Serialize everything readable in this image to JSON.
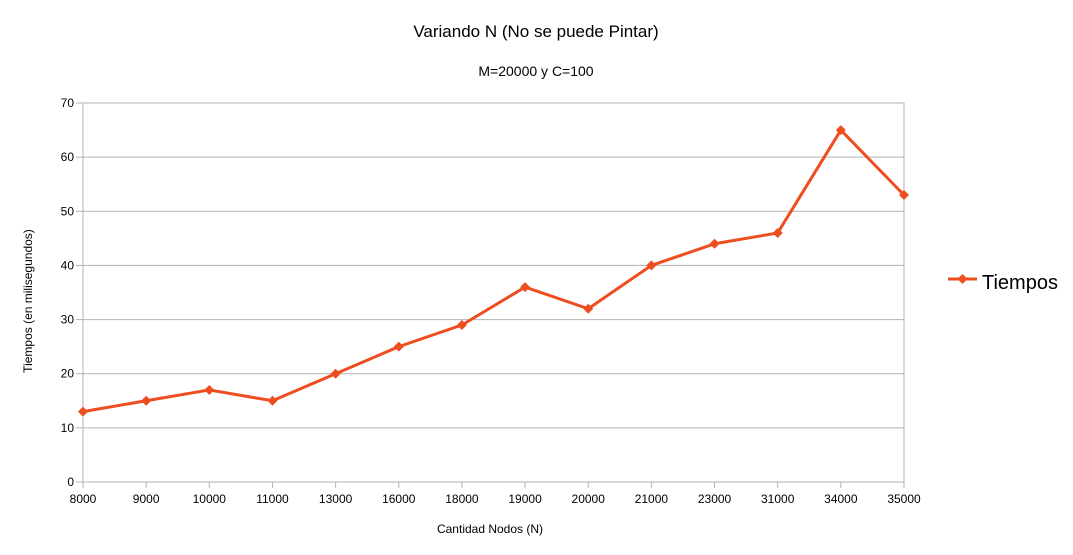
{
  "chart_data": {
    "type": "line",
    "title": "Variando N (No se puede Pintar)",
    "subtitle": "M=20000 y C=100",
    "xlabel": "Cantidad Nodos (N)",
    "ylabel": "Tiempos (en milisegundos)",
    "categories": [
      "8000",
      "9000",
      "10000",
      "11000",
      "13000",
      "16000",
      "18000",
      "19000",
      "20000",
      "21000",
      "23000",
      "31000",
      "34000",
      "35000"
    ],
    "series": [
      {
        "name": "Tiempos",
        "values": [
          13,
          15,
          17,
          15,
          20,
          25,
          29,
          36,
          32,
          40,
          44,
          46,
          65,
          53
        ],
        "color": "#ee4d1f",
        "marker": "diamond"
      }
    ],
    "ylim": [
      0,
      70
    ],
    "yticks": [
      0,
      10,
      20,
      30,
      40,
      50,
      60,
      70
    ],
    "grid": true,
    "legend_position": "right"
  }
}
